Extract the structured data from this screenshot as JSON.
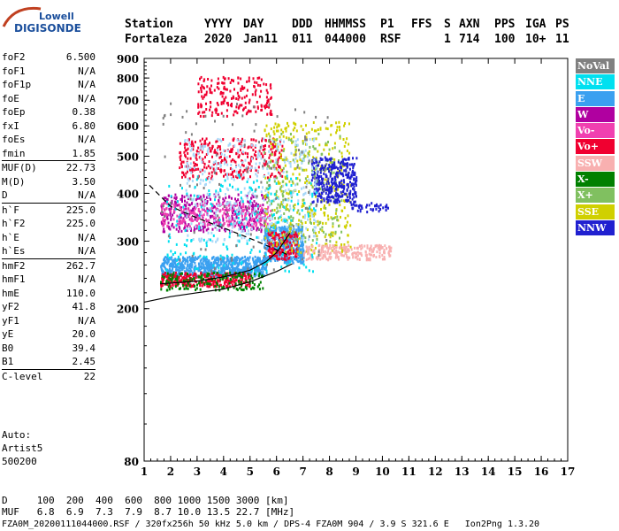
{
  "logo": {
    "line1": "Lowell",
    "line2": "DIGISONDE"
  },
  "header": {
    "labels": [
      "Station",
      "YYYY",
      "DAY",
      "DDD",
      "HHMMSS",
      "P1",
      "FFS",
      "S",
      "AXN",
      "PPS",
      "IGA",
      "PS"
    ],
    "values": [
      "Fortaleza",
      "2020",
      "Jan11",
      "011",
      "044000",
      "RSF",
      "",
      "1",
      "714",
      "100",
      "10+",
      "11"
    ]
  },
  "params": [
    {
      "name": "foF2",
      "value": "6.500"
    },
    {
      "name": "foF1",
      "value": "N/A"
    },
    {
      "name": "foF1p",
      "value": "N/A"
    },
    {
      "name": "foE",
      "value": "N/A"
    },
    {
      "name": "foEp",
      "value": "0.38"
    },
    {
      "name": "fxI",
      "value": "6.80"
    },
    {
      "name": "foEs",
      "value": "N/A"
    },
    {
      "name": "fmin",
      "value": "1.85"
    },
    {
      "name": "MUF(D)",
      "value": "22.73",
      "sep": true
    },
    {
      "name": "M(D)",
      "value": "3.50"
    },
    {
      "name": "D",
      "value": "N/A"
    },
    {
      "name": "h`F",
      "value": "225.0",
      "sep": true
    },
    {
      "name": "h`F2",
      "value": "225.0"
    },
    {
      "name": "h`E",
      "value": "N/A"
    },
    {
      "name": "h`Es",
      "value": "N/A"
    },
    {
      "name": "hmF2",
      "value": "262.7",
      "sep": true
    },
    {
      "name": "hmF1",
      "value": "N/A"
    },
    {
      "name": "hmE",
      "value": "110.0"
    },
    {
      "name": "yF2",
      "value": "41.8"
    },
    {
      "name": "yF1",
      "value": "N/A"
    },
    {
      "name": "yE",
      "value": "20.0"
    },
    {
      "name": "B0",
      "value": "39.4"
    },
    {
      "name": "B1",
      "value": "2.45"
    },
    {
      "name": "C-level",
      "value": "22",
      "sep": true
    }
  ],
  "auto": {
    "line1": "Auto:",
    "line2": "Artist5",
    "line3": "500200"
  },
  "legend": [
    {
      "label": "NoVal",
      "color": "#808080"
    },
    {
      "label": "NNE",
      "color": "#00e0f0"
    },
    {
      "label": "E",
      "color": "#3aa0f0"
    },
    {
      "label": "W",
      "color": "#b000a0"
    },
    {
      "label": "Vo-",
      "color": "#f040b0"
    },
    {
      "label": "Vo+",
      "color": "#f00030"
    },
    {
      "label": "SSW",
      "color": "#f8b0b0"
    },
    {
      "label": "X-",
      "color": "#008000"
    },
    {
      "label": "X+",
      "color": "#80c060"
    },
    {
      "label": "SSE",
      "color": "#d0d000"
    },
    {
      "label": "NNW",
      "color": "#2020d0"
    }
  ],
  "footer": {
    "d_line": "D     100  200  400  600  800 1000 1500 3000 [km]",
    "muf_line": "MUF   6.8  6.9  7.3  7.9  8.7 10.0 13.5 22.7 [MHz]",
    "file_line": "FZA0M_20200111044000.RSF / 320fx256h 50 kHz 5.0 km / DPS-4 FZA0M 904 / 3.9 S 321.6 E   Ion2Png 1.3.20"
  },
  "chart_data": {
    "type": "scatter",
    "xlabel": "",
    "ylabel": "",
    "xlim": [
      1,
      17
    ],
    "ylim": [
      80,
      900
    ],
    "y_scale": "log",
    "x_ticks": [
      1,
      2,
      3,
      4,
      5,
      6,
      7,
      8,
      9,
      10,
      11,
      12,
      13,
      14,
      15,
      16,
      17
    ],
    "y_ticks": [
      80,
      200,
      300,
      400,
      500,
      600,
      700,
      800,
      900
    ],
    "clusters": [
      {
        "name": "o-trace base",
        "color": "#3aa0f0",
        "x": [
          1.6,
          5.6
        ],
        "y": [
          245,
          275
        ],
        "count": 700
      },
      {
        "name": "o-trace base red",
        "color": "#f00030",
        "x": [
          1.6,
          5.0
        ],
        "y": [
          230,
          250
        ],
        "count": 300
      },
      {
        "name": "o-trace base green",
        "color": "#008000",
        "x": [
          1.6,
          5.5
        ],
        "y": [
          225,
          250
        ],
        "count": 150
      },
      {
        "name": "F2 cusp",
        "color": "#3aa0f0",
        "x": [
          5.5,
          7.0
        ],
        "y": [
          265,
          330
        ],
        "count": 400
      },
      {
        "name": "F2 cusp red",
        "color": "#f00030",
        "x": [
          5.6,
          6.8
        ],
        "y": [
          270,
          320
        ],
        "count": 150
      },
      {
        "name": "second hop red",
        "color": "#f00030",
        "x": [
          2.3,
          6.2
        ],
        "y": [
          440,
          560
        ],
        "count": 320
      },
      {
        "name": "second hop magenta",
        "color": "#b000a0",
        "x": [
          1.6,
          5.6
        ],
        "y": [
          320,
          400
        ],
        "count": 380
      },
      {
        "name": "second hop pink",
        "color": "#f040b0",
        "x": [
          1.6,
          5.8
        ],
        "y": [
          330,
          380
        ],
        "count": 220
      },
      {
        "name": "third hop red",
        "color": "#f00030",
        "x": [
          3.0,
          5.8
        ],
        "y": [
          640,
          810
        ],
        "count": 200
      },
      {
        "name": "spread F yellow",
        "color": "#d0d000",
        "x": [
          5.5,
          8.8
        ],
        "y": [
          280,
          620
        ],
        "count": 380
      },
      {
        "name": "spread F light green",
        "color": "#80c060",
        "x": [
          5.5,
          8.5
        ],
        "y": [
          300,
          580
        ],
        "count": 200
      },
      {
        "name": "NNW cluster",
        "color": "#2020d0",
        "x": [
          7.3,
          9.0
        ],
        "y": [
          380,
          500
        ],
        "count": 350
      },
      {
        "name": "NNW tail",
        "color": "#2020d0",
        "x": [
          8.8,
          10.2
        ],
        "y": [
          360,
          380
        ],
        "count": 40
      },
      {
        "name": "SSW patch",
        "color": "#f8b0b0",
        "x": [
          7.0,
          10.3
        ],
        "y": [
          270,
          295
        ],
        "count": 220
      },
      {
        "name": "light blue haze",
        "color": "#a8d8f8",
        "x": [
          2.5,
          7.5
        ],
        "y": [
          300,
          560
        ],
        "count": 400
      },
      {
        "name": "NNE scatter",
        "color": "#00e0f0",
        "x": [
          1.8,
          7.5
        ],
        "y": [
          250,
          450
        ],
        "count": 200
      },
      {
        "name": "NoVal scatter",
        "color": "#808080",
        "x": [
          1.6,
          8.0
        ],
        "y": [
          250,
          700
        ],
        "count": 120
      }
    ],
    "curves": [
      {
        "name": "profile dashed",
        "style": "dashed",
        "points": [
          [
            1.2,
            420
          ],
          [
            2.0,
            370
          ],
          [
            3.0,
            345
          ],
          [
            4.0,
            325
          ],
          [
            5.0,
            305
          ],
          [
            6.0,
            285
          ],
          [
            6.5,
            275
          ]
        ]
      },
      {
        "name": "o-trace fit",
        "style": "solid",
        "points": [
          [
            1.6,
            232
          ],
          [
            3.0,
            236
          ],
          [
            4.0,
            242
          ],
          [
            5.0,
            252
          ],
          [
            5.6,
            265
          ],
          [
            6.0,
            280
          ],
          [
            6.3,
            300
          ],
          [
            6.5,
            315
          ]
        ]
      },
      {
        "name": "x-trace fit",
        "style": "solid",
        "points": [
          [
            1.0,
            208
          ],
          [
            2.0,
            215
          ],
          [
            3.0,
            220
          ],
          [
            4.0,
            225
          ],
          [
            5.0,
            235
          ],
          [
            6.0,
            250
          ],
          [
            6.6,
            262
          ]
        ]
      }
    ]
  }
}
